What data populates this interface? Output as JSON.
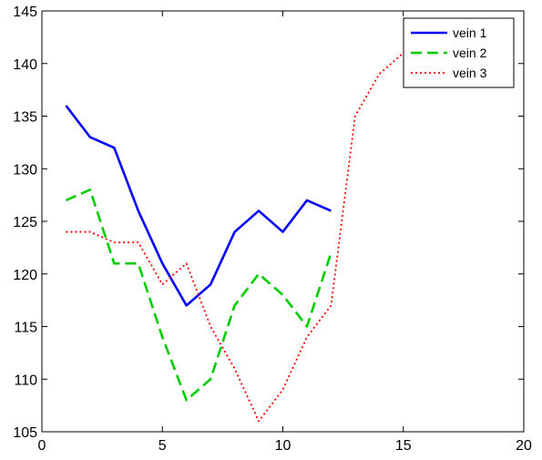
{
  "chart_data": {
    "type": "line",
    "title": "",
    "xlabel": "",
    "ylabel": "",
    "xlim": [
      0,
      20
    ],
    "ylim": [
      105,
      145
    ],
    "xticks": [
      0,
      5,
      10,
      15,
      20
    ],
    "yticks": [
      105,
      110,
      115,
      120,
      125,
      130,
      135,
      140,
      145
    ],
    "grid": false,
    "legend_position": "top-right",
    "series": [
      {
        "name": "vein 1",
        "color": "#0000ff",
        "style": "solid",
        "x": [
          1,
          2,
          3,
          4,
          5,
          6,
          7,
          8,
          9,
          10,
          11,
          12
        ],
        "y": [
          136,
          133,
          132,
          126,
          121,
          117,
          119,
          124,
          126,
          124,
          127,
          126
        ]
      },
      {
        "name": "vein 2",
        "color": "#00cc00",
        "style": "dashed",
        "x": [
          1,
          2,
          3,
          4,
          5,
          6,
          7,
          8,
          9,
          10,
          11,
          12
        ],
        "y": [
          127,
          128,
          121,
          121,
          114,
          108,
          110,
          117,
          120,
          118,
          115,
          122
        ]
      },
      {
        "name": "vein 3",
        "color": "#ff0000",
        "style": "dotted",
        "x": [
          1,
          2,
          3,
          4,
          5,
          6,
          7,
          8,
          9,
          10,
          11,
          12,
          13,
          14,
          15,
          16
        ],
        "y": [
          124,
          124,
          123,
          123,
          119,
          121,
          115,
          111,
          106,
          109,
          114,
          117,
          135,
          139,
          141,
          142
        ]
      }
    ]
  }
}
